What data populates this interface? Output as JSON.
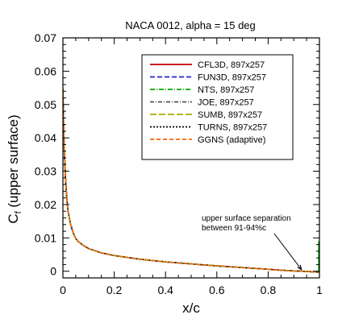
{
  "chart_data": {
    "type": "line",
    "title": "NACA 0012, alpha = 15 deg",
    "xlabel": "x/c",
    "ylabel_main": "C",
    "ylabel_sub": "f",
    "ylabel_rest": " (upper surface)",
    "xlim": [
      0,
      1
    ],
    "ylim": [
      -0.002,
      0.07
    ],
    "xticks": [
      0,
      0.2,
      0.4,
      0.6,
      0.8,
      1
    ],
    "xtick_labels": [
      "0",
      "0.2",
      "0.4",
      "0.6",
      "0.8",
      "1"
    ],
    "yticks": [
      0,
      0.01,
      0.02,
      0.03,
      0.04,
      0.05,
      0.06,
      0.07
    ],
    "ytick_labels": [
      "0",
      "0.01",
      "0.02",
      "0.03",
      "0.04",
      "0.05",
      "0.06",
      "0.07"
    ],
    "grid": false,
    "legend_position": "upper-right",
    "x": [
      0.0,
      0.002,
      0.005,
      0.01,
      0.015,
      0.02,
      0.03,
      0.04,
      0.05,
      0.06,
      0.08,
      0.1,
      0.15,
      0.2,
      0.3,
      0.4,
      0.5,
      0.6,
      0.7,
      0.8,
      0.85,
      0.9,
      0.93,
      0.96,
      1.0
    ],
    "series": [
      {
        "name": "CFL3D, 897x257",
        "color": "#c00000",
        "dash": "",
        "values": [
          0.0548,
          0.046,
          0.037,
          0.028,
          0.022,
          0.018,
          0.014,
          0.0115,
          0.0098,
          0.0089,
          0.0077,
          0.0068,
          0.0055,
          0.0047,
          0.0036,
          0.0028,
          0.0022,
          0.0016,
          0.0011,
          0.0006,
          0.0003,
          0.0001,
          0.0,
          -0.0001,
          -0.0003
        ]
      },
      {
        "name": "FUN3D, 897x257",
        "color": "#2222cc",
        "dash": "6,3",
        "values": [
          0.0548,
          0.046,
          0.037,
          0.028,
          0.022,
          0.018,
          0.014,
          0.0115,
          0.0098,
          0.0089,
          0.0077,
          0.0068,
          0.0055,
          0.0047,
          0.0036,
          0.0028,
          0.0022,
          0.0016,
          0.0011,
          0.0006,
          0.0003,
          0.0001,
          0.0,
          -0.0001,
          -0.0003
        ]
      },
      {
        "name": "NTS, 897x257",
        "color": "#00aa00",
        "dash": "6,2,1,2",
        "values": [
          0.0548,
          0.046,
          0.037,
          0.028,
          0.022,
          0.018,
          0.014,
          0.0115,
          0.0098,
          0.0089,
          0.0077,
          0.0068,
          0.0055,
          0.0047,
          0.0036,
          0.0028,
          0.0022,
          0.0016,
          0.0011,
          0.0006,
          0.0003,
          0.0001,
          0.0,
          -0.0001,
          -0.0003
        ]
      },
      {
        "name": "JOE, 897x257",
        "color": "#555555",
        "dash": "5,2,1,2",
        "values": [
          0.0548,
          0.046,
          0.037,
          0.028,
          0.022,
          0.018,
          0.014,
          0.0115,
          0.0098,
          0.0089,
          0.0077,
          0.0068,
          0.0055,
          0.0047,
          0.0036,
          0.0028,
          0.0022,
          0.0016,
          0.0011,
          0.0006,
          0.0003,
          0.0001,
          0.0,
          -0.0001,
          -0.0003
        ]
      },
      {
        "name": "SUMB, 897x257",
        "color": "#aaaa00",
        "dash": "8,3",
        "values": [
          0.0548,
          0.046,
          0.037,
          0.028,
          0.022,
          0.018,
          0.014,
          0.0115,
          0.0098,
          0.0089,
          0.0077,
          0.0068,
          0.0055,
          0.0047,
          0.0036,
          0.0028,
          0.0022,
          0.0016,
          0.0011,
          0.0006,
          0.0003,
          0.0001,
          0.0,
          -0.0001,
          -0.0003
        ]
      },
      {
        "name": "TURNS, 897x257",
        "color": "#000000",
        "dash": "2,2",
        "values": [
          0.0548,
          0.046,
          0.037,
          0.028,
          0.022,
          0.018,
          0.014,
          0.0115,
          0.0098,
          0.0089,
          0.0077,
          0.0068,
          0.0055,
          0.0047,
          0.0036,
          0.0028,
          0.0022,
          0.0016,
          0.0011,
          0.0006,
          0.0003,
          0.0001,
          0.0,
          -0.0001,
          -0.0003
        ]
      },
      {
        "name": "GGNS (adaptive)",
        "color": "#ff6600",
        "dash": "5,3",
        "values": [
          0.0548,
          0.046,
          0.037,
          0.028,
          0.022,
          0.018,
          0.014,
          0.0115,
          0.0098,
          0.0089,
          0.0077,
          0.0068,
          0.0055,
          0.0047,
          0.0036,
          0.0028,
          0.0022,
          0.0016,
          0.0011,
          0.0006,
          0.0003,
          0.0001,
          0.0,
          -0.0001,
          -0.0003
        ]
      }
    ],
    "trailing_edge_spike": {
      "x": 1.0,
      "y_from": -0.0003,
      "y_to": 0.009
    },
    "annotation": {
      "line1": "upper surface separation",
      "line2": "between 91-94%c",
      "arrow_target_x": 0.93,
      "arrow_target_y": 0.0
    }
  }
}
